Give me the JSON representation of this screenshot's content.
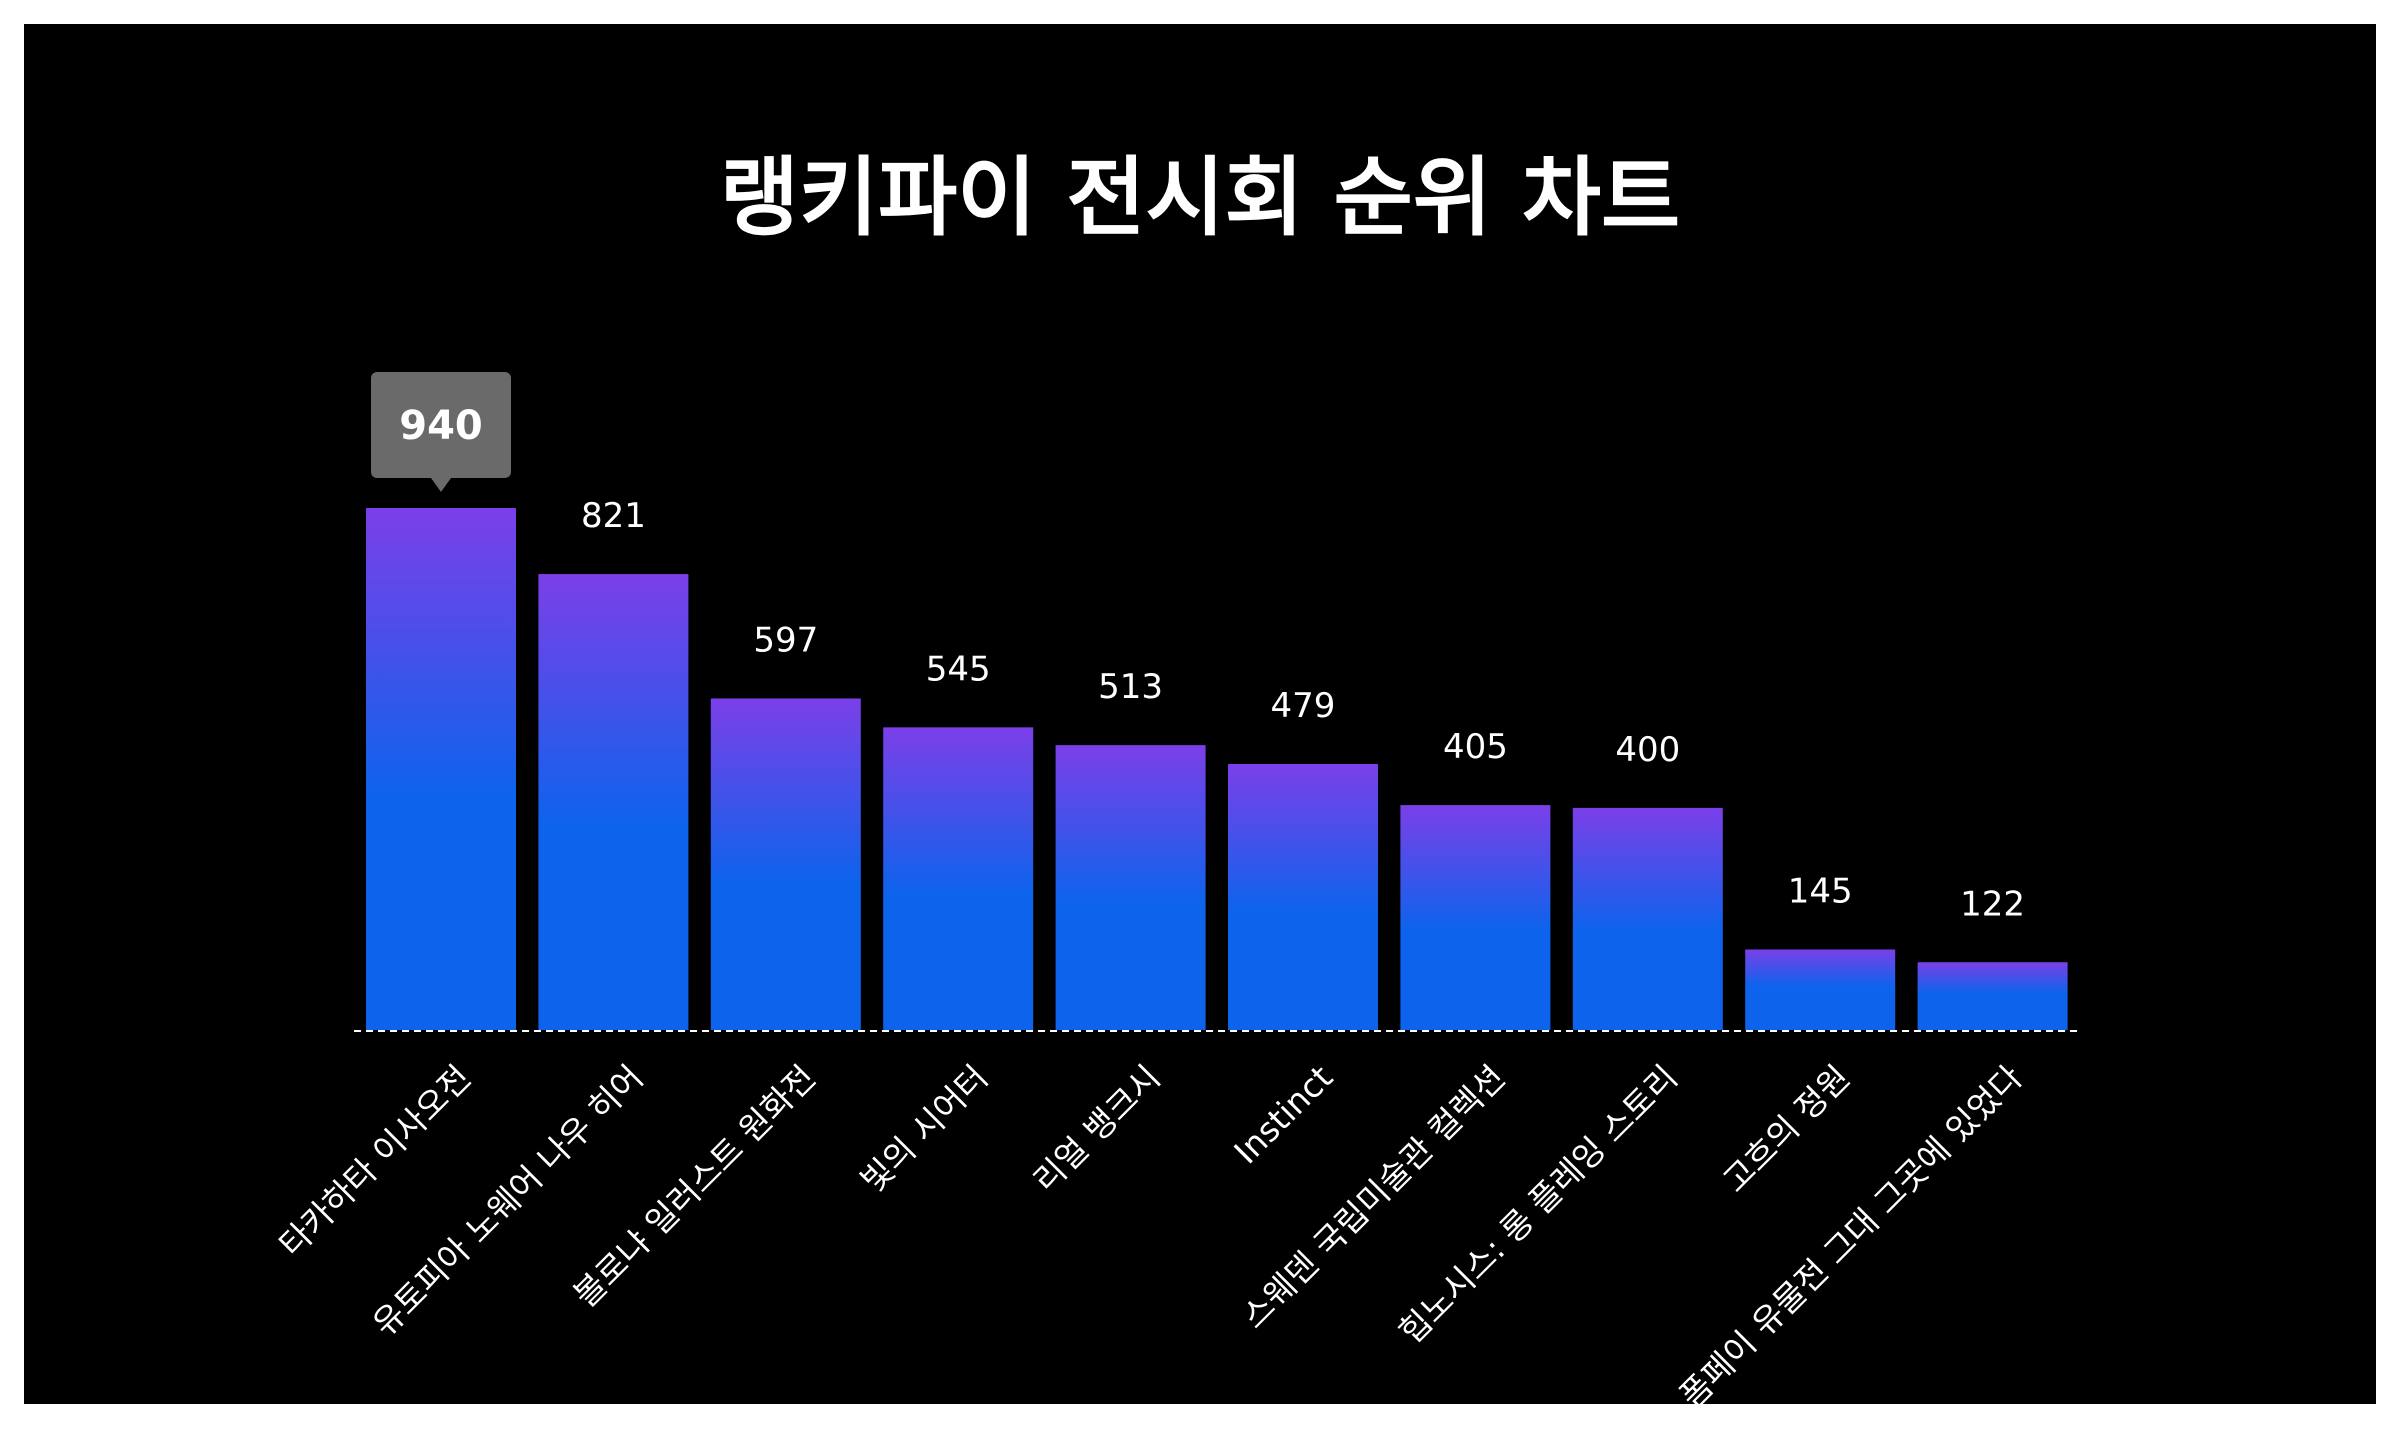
{
  "chart_data": {
    "type": "bar",
    "title": "랭키파이 전시회 순위 차트",
    "categories": [
      "타카하타 이사오전",
      "유토피아 노웨어 나우 히어",
      "볼로냐 일러스트 원화전",
      "빛의 시어터",
      "리얼 뱅크시",
      "Instinct",
      "스웨덴 국립미술관 컬렉션",
      "힙노시스: 롱 플레잉 스토리",
      "고흐의 정원",
      "폼페이 유물전 그대 그곳에 있었다"
    ],
    "values": [
      940,
      821,
      597,
      545,
      513,
      479,
      405,
      400,
      145,
      122
    ],
    "highlight_index": 0,
    "ylim": [
      0,
      940
    ],
    "grid": false,
    "legend": "none",
    "xlabel": "",
    "ylabel": ""
  },
  "colors": {
    "background": "#000000",
    "bar_top": "#7b3fe8",
    "bar_bottom": "#0e63ec",
    "tooltip_bg": "#6a6a6a",
    "text": "#ffffff"
  }
}
